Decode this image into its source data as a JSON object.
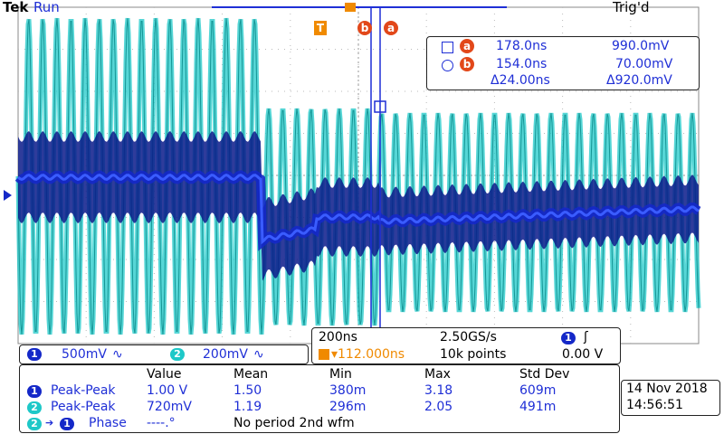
{
  "header": {
    "brand": "Tek",
    "run_state": "Run",
    "trigger_state": "Trig'd"
  },
  "markers": {
    "trigger_marker": "T",
    "cursor_a": "a",
    "cursor_b": "b",
    "ch1_ground": "1"
  },
  "cursor_readout": {
    "a_label": "a",
    "a_time": "178.0ns",
    "a_volt": "990.0mV",
    "b_label": "b",
    "b_time": "154.0ns",
    "b_volt": "70.00mV",
    "delta_time": "Δ24.00ns",
    "delta_volt": "Δ920.0mV"
  },
  "channels": {
    "ch1_badge": "1",
    "ch1_scale": "500mV",
    "ch1_coupling": "∿",
    "ch2_badge": "2",
    "ch2_scale": "200mV",
    "ch2_coupling": "∿"
  },
  "timebase": {
    "scale": "200ns",
    "sample_rate": "2.50GS/s",
    "trigger_offset": "▾112.000ns",
    "record_length": "10k points",
    "trig_source_badge": "1",
    "trig_slope": "ʃ",
    "trig_level": "0.00 V"
  },
  "measurements": {
    "headers": [
      "Value",
      "Mean",
      "Min",
      "Max",
      "Std Dev"
    ],
    "rows": [
      {
        "badge": "1",
        "name": "Peak-Peak",
        "value": "1.00 V",
        "mean": "1.50",
        "min": "380m",
        "max": "3.18",
        "std": "609m"
      },
      {
        "badge": "2",
        "name": "Peak-Peak",
        "value": "720mV",
        "mean": "1.19",
        "min": "296m",
        "max": "2.05",
        "std": "491m"
      }
    ],
    "phase": {
      "badge_from": "2",
      "arrow": "➔",
      "badge_to": "1",
      "name": "Phase",
      "value": "----.°",
      "note": "No period 2nd wfm"
    }
  },
  "datetime": {
    "date": "14 Nov 2018",
    "time": "14:56:51"
  },
  "colors": {
    "ch1": "#1428c8",
    "ch2": "#1ec8c8",
    "cursor": "#1f2fd6",
    "trigger": "#f08a00",
    "cursor_badge": "#e2481a"
  }
}
